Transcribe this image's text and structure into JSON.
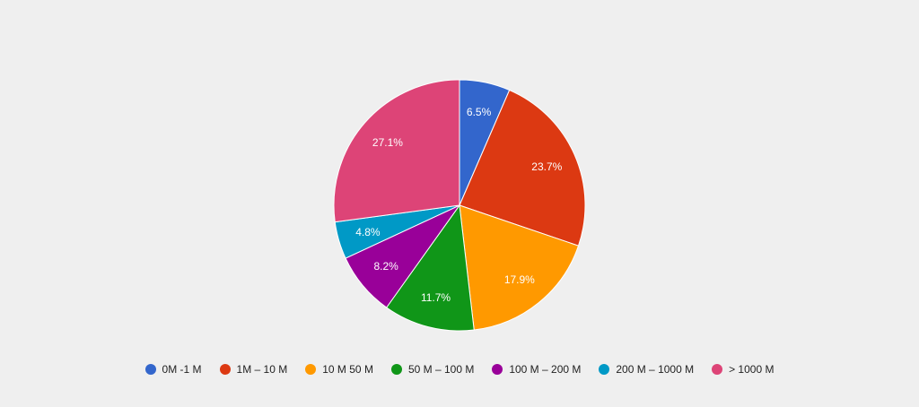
{
  "chart_data": {
    "type": "pie",
    "title": "",
    "legend_position": "bottom",
    "start_angle_deg": 0,
    "direction": "clockwise",
    "slices": [
      {
        "name": "0M -1 M",
        "value": 6.5,
        "label": "6.5%",
        "color": "#3366cc"
      },
      {
        "name": "1M – 10 M",
        "value": 23.7,
        "label": "23.7%",
        "color": "#dc3912"
      },
      {
        "name": "10 M 50 M",
        "value": 17.9,
        "label": "17.9%",
        "color": "#ff9900"
      },
      {
        "name": "50 M – 100 M",
        "value": 11.7,
        "label": "11.7%",
        "color": "#109618"
      },
      {
        "name": "100 M – 200 M",
        "value": 8.2,
        "label": "8.2%",
        "color": "#990099"
      },
      {
        "name": "200 M – 1000 M",
        "value": 4.8,
        "label": "4.8%",
        "color": "#0099c6"
      },
      {
        "name": "> 1000 M",
        "value": 27.1,
        "label": "27.1%",
        "color": "#dd4477"
      }
    ]
  }
}
